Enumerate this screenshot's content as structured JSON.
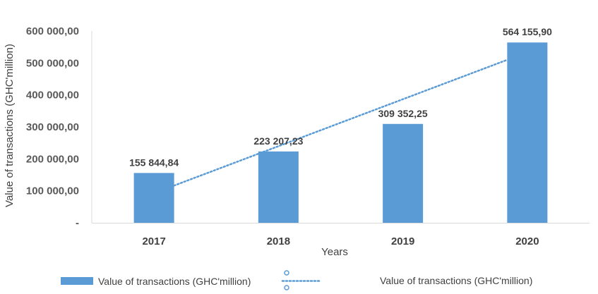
{
  "chart_data": {
    "type": "bar",
    "categories": [
      "2017",
      "2018",
      "2019",
      "2020"
    ],
    "series": [
      {
        "name": "Value  of transactions (GHC'million)",
        "values": [
          155844.84,
          223207.23,
          309352.25,
          564155.9
        ],
        "data_labels": [
          "155 844,84",
          "223 207,23",
          "309 352,25",
          "564 155,90"
        ],
        "color": "#5B9BD5"
      }
    ],
    "trendline": {
      "type": "linear",
      "name": "Value  of transactions (GHC'million)",
      "color": "#5B9BD5",
      "style": "dotted"
    },
    "xlabel": "Years",
    "ylabel": "Value of transactions (GHC'million)",
    "ylim": [
      0,
      600000
    ],
    "yticks": [
      0,
      100000,
      200000,
      300000,
      400000,
      500000,
      600000
    ],
    "ytick_labels": [
      "-",
      "100 000,00",
      "200 000,00",
      "300 000,00",
      "400 000,00",
      "500 000,00",
      "600 000,00"
    ],
    "grid": false,
    "legend_position": "bottom"
  }
}
